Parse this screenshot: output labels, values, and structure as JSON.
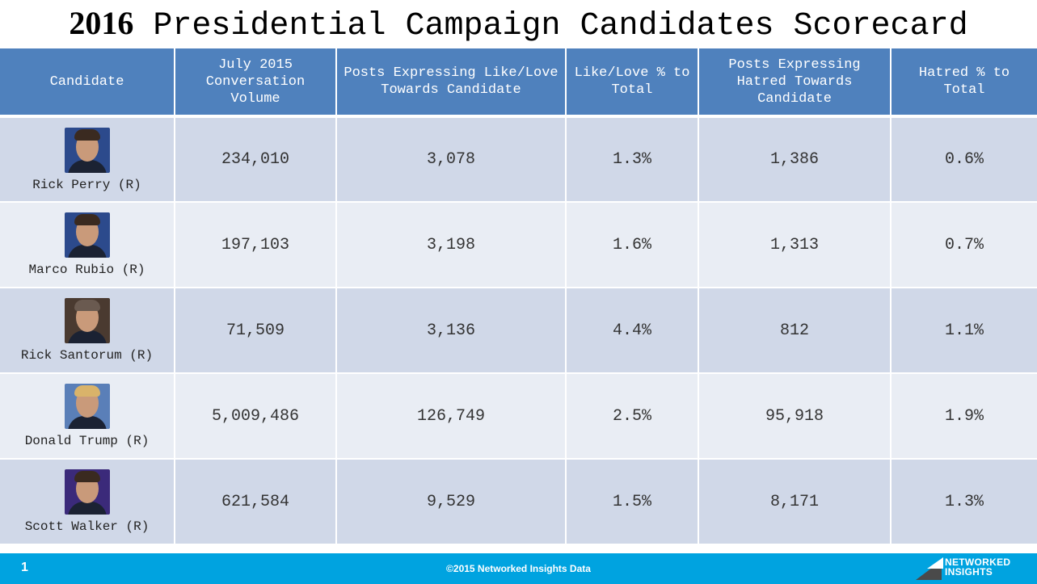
{
  "title": {
    "year": "2016",
    "rest": " Presidential Campaign Candidates Scorecard"
  },
  "headers": [
    "Candidate",
    "July 2015 Conversation Volume",
    "Posts Expressing Like/Love Towards Candidate",
    "Like/Love % to Total",
    "Posts Expressing Hatred Towards Candidate",
    "Hatred % to Total"
  ],
  "rows": [
    {
      "name": "Rick Perry (R)",
      "volume": "234,010",
      "love_posts": "3,078",
      "love_pct": "1.3%",
      "hate_posts": "1,386",
      "hate_pct": "0.6%"
    },
    {
      "name": "Marco Rubio (R)",
      "volume": "197,103",
      "love_posts": "3,198",
      "love_pct": "1.6%",
      "hate_posts": "1,313",
      "hate_pct": "0.7%"
    },
    {
      "name": "Rick Santorum (R)",
      "volume": "71,509",
      "love_posts": "3,136",
      "love_pct": "4.4%",
      "hate_posts": "812",
      "hate_pct": "1.1%"
    },
    {
      "name": "Donald Trump (R)",
      "volume": "5,009,486",
      "love_posts": "126,749",
      "love_pct": "2.5%",
      "hate_posts": "95,918",
      "hate_pct": "1.9%"
    },
    {
      "name": "Scott Walker (R)",
      "volume": "621,584",
      "love_posts": "9,529",
      "love_pct": "1.5%",
      "hate_posts": "8,171",
      "hate_pct": "1.3%"
    }
  ],
  "footer": {
    "page": "1",
    "copyright": "©2015 Networked Insights Data",
    "logo_line1": "NETWORKED",
    "logo_line2": "INSIGHTS"
  },
  "colors": {
    "header": "#4f81bd",
    "row_dark": "#d0d8e8",
    "row_light": "#e9edf4",
    "footer": "#00a3e0"
  }
}
